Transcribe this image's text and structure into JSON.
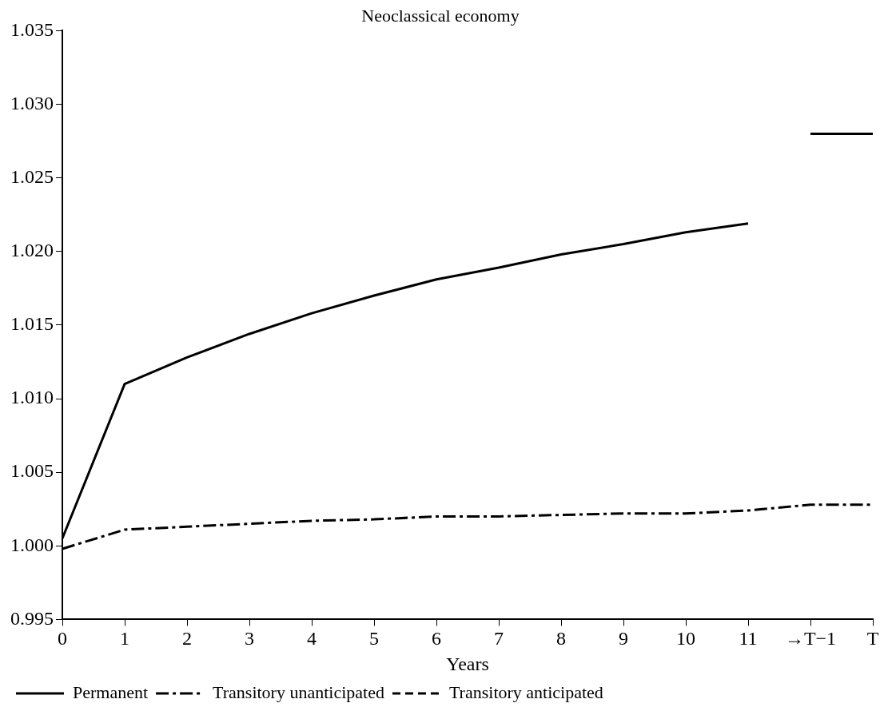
{
  "chart_data": {
    "type": "line",
    "title": "Neoclassical economy",
    "xlabel": "Years",
    "categories": [
      "0",
      "1",
      "2",
      "3",
      "4",
      "5",
      "6",
      "7",
      "8",
      "9",
      "10",
      "11",
      "→T−1",
      "T"
    ],
    "ylim": [
      0.995,
      1.035
    ],
    "yticks": [
      {
        "value": 0.995,
        "label": "0.995"
      },
      {
        "value": 1.0,
        "label": "1.000"
      },
      {
        "value": 1.005,
        "label": "1.005"
      },
      {
        "value": 1.01,
        "label": "1.010"
      },
      {
        "value": 1.015,
        "label": "1.015"
      },
      {
        "value": 1.02,
        "label": "1.020"
      },
      {
        "value": 1.025,
        "label": "1.025"
      },
      {
        "value": 1.03,
        "label": "1.030"
      },
      {
        "value": 1.035,
        "label": "1.035"
      }
    ],
    "grid": false,
    "legend": "bottom left",
    "marker": "none",
    "series": [
      {
        "name": "Permanent",
        "color": "#000000",
        "line_style": "solid",
        "values": [
          1.0005,
          1.011,
          1.0128,
          1.0144,
          1.0158,
          1.017,
          1.0181,
          1.0189,
          1.0198,
          1.0205,
          1.0213,
          1.0219,
          null,
          null
        ]
      },
      {
        "name": "Transitory unanticipated",
        "color": "#000000",
        "line_style": "dashdot",
        "values": [
          0.9998,
          1.0011,
          1.0013,
          1.0015,
          1.0017,
          1.0018,
          1.002,
          1.002,
          1.0021,
          1.0022,
          1.0022,
          1.0024,
          1.0028,
          1.0028
        ]
      },
      {
        "name": "Transitory anticipated",
        "color": "#000000",
        "line_style": "dashed",
        "values": [
          null,
          null,
          null,
          null,
          null,
          null,
          null,
          null,
          null,
          null,
          null,
          null,
          null,
          null
        ]
      },
      {
        "color": "#000000",
        "line_style": "solid",
        "values": [
          null,
          null,
          null,
          null,
          null,
          null,
          null,
          null,
          null,
          null,
          null,
          null,
          1.028,
          1.028
        ]
      }
    ]
  }
}
